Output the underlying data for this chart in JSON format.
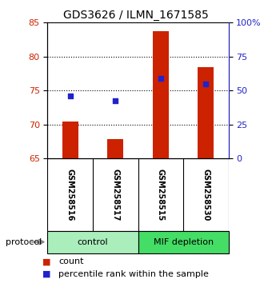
{
  "title": "GDS3626 / ILMN_1671585",
  "samples": [
    "GSM258516",
    "GSM258517",
    "GSM258515",
    "GSM258530"
  ],
  "bar_bottoms": [
    65,
    65,
    65,
    65
  ],
  "bar_tops": [
    70.5,
    67.8,
    83.8,
    78.5
  ],
  "percentile_values": [
    74.2,
    73.5,
    76.8,
    76.0
  ],
  "ylim_left": [
    65,
    85
  ],
  "ylim_right": [
    0,
    100
  ],
  "yticks_left": [
    65,
    70,
    75,
    80,
    85
  ],
  "yticks_right": [
    0,
    25,
    50,
    75,
    100
  ],
  "ytick_labels_right": [
    "0",
    "25",
    "50",
    "75",
    "100%"
  ],
  "bar_color": "#cc2200",
  "percentile_color": "#2222cc",
  "group0_label": "control",
  "group0_color": "#aaeebb",
  "group1_label": "MIF depletion",
  "group1_color": "#44dd66",
  "protocol_label": "protocol",
  "legend_count_label": "count",
  "legend_percentile_label": "percentile rank within the sample",
  "background_plot": "#ffffff",
  "background_sample": "#cccccc",
  "bar_width": 0.35,
  "title_fontsize": 10,
  "grid_yticks": [
    70,
    75,
    80
  ]
}
